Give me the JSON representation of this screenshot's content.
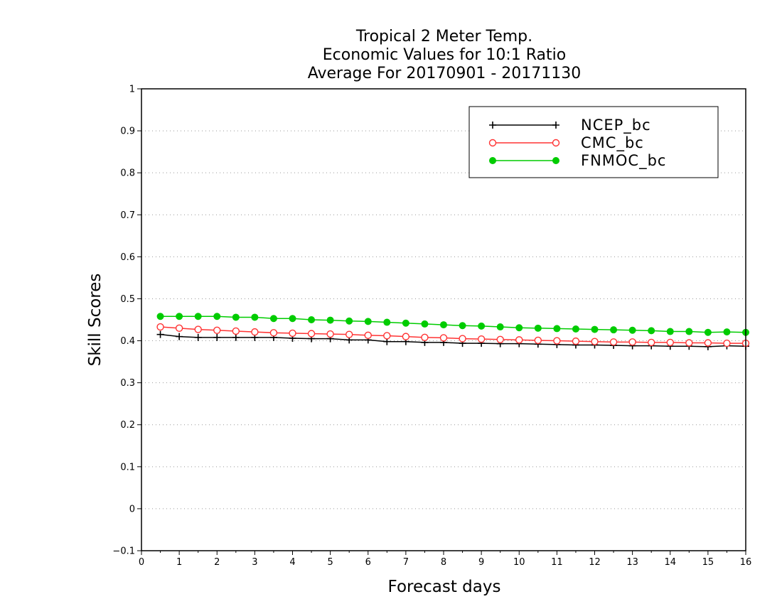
{
  "chart_data": {
    "type": "line",
    "title_lines": [
      "Tropical 2 Meter Temp.",
      "Economic Values for 10:1 Ratio",
      "Average For 20170901 - 20171130"
    ],
    "xlabel": "Forecast days",
    "ylabel": "Skill Scores",
    "xlim": [
      0,
      16
    ],
    "ylim": [
      -0.1,
      1
    ],
    "x_ticks": [
      "0",
      "1",
      "2",
      "3",
      "4",
      "5",
      "6",
      "7",
      "8",
      "9",
      "10",
      "11",
      "12",
      "13",
      "14",
      "15",
      "16"
    ],
    "y_ticks": [
      "−0.1",
      "0",
      "0.1",
      "0.2",
      "0.3",
      "0.4",
      "0.5",
      "0.6",
      "0.7",
      "0.8",
      "0.9",
      "1"
    ],
    "grid": "horizontal-dotted",
    "legend_position": "top-right",
    "x": [
      0.5,
      1,
      1.5,
      2,
      2.5,
      3,
      3.5,
      4,
      4.5,
      5,
      5.5,
      6,
      6.5,
      7,
      7.5,
      8,
      8.5,
      9,
      9.5,
      10,
      10.5,
      11,
      11.5,
      12,
      12.5,
      13,
      13.5,
      14,
      14.5,
      15,
      15.5,
      16
    ],
    "series": [
      {
        "name": "NCEP_bc",
        "color": "#000000",
        "marker": "plus",
        "values": [
          0.415,
          0.41,
          0.408,
          0.408,
          0.408,
          0.408,
          0.408,
          0.406,
          0.405,
          0.405,
          0.402,
          0.402,
          0.398,
          0.398,
          0.396,
          0.396,
          0.394,
          0.394,
          0.393,
          0.393,
          0.392,
          0.391,
          0.39,
          0.39,
          0.389,
          0.388,
          0.388,
          0.387,
          0.387,
          0.386,
          0.388,
          0.387
        ]
      },
      {
        "name": "CMC_bc",
        "color": "#ff3333",
        "marker": "open-circle",
        "values": [
          0.433,
          0.43,
          0.427,
          0.425,
          0.423,
          0.421,
          0.419,
          0.418,
          0.417,
          0.416,
          0.415,
          0.413,
          0.412,
          0.41,
          0.408,
          0.407,
          0.405,
          0.404,
          0.403,
          0.402,
          0.401,
          0.4,
          0.399,
          0.398,
          0.397,
          0.397,
          0.396,
          0.396,
          0.395,
          0.395,
          0.394,
          0.394
        ]
      },
      {
        "name": "FNMOC_bc",
        "color": "#00cc00",
        "marker": "filled-circle",
        "values": [
          0.458,
          0.458,
          0.458,
          0.458,
          0.456,
          0.456,
          0.453,
          0.453,
          0.45,
          0.449,
          0.447,
          0.446,
          0.444,
          0.442,
          0.44,
          0.438,
          0.436,
          0.435,
          0.433,
          0.431,
          0.43,
          0.429,
          0.428,
          0.427,
          0.426,
          0.425,
          0.424,
          0.422,
          0.422,
          0.42,
          0.421,
          0.42
        ]
      }
    ]
  }
}
